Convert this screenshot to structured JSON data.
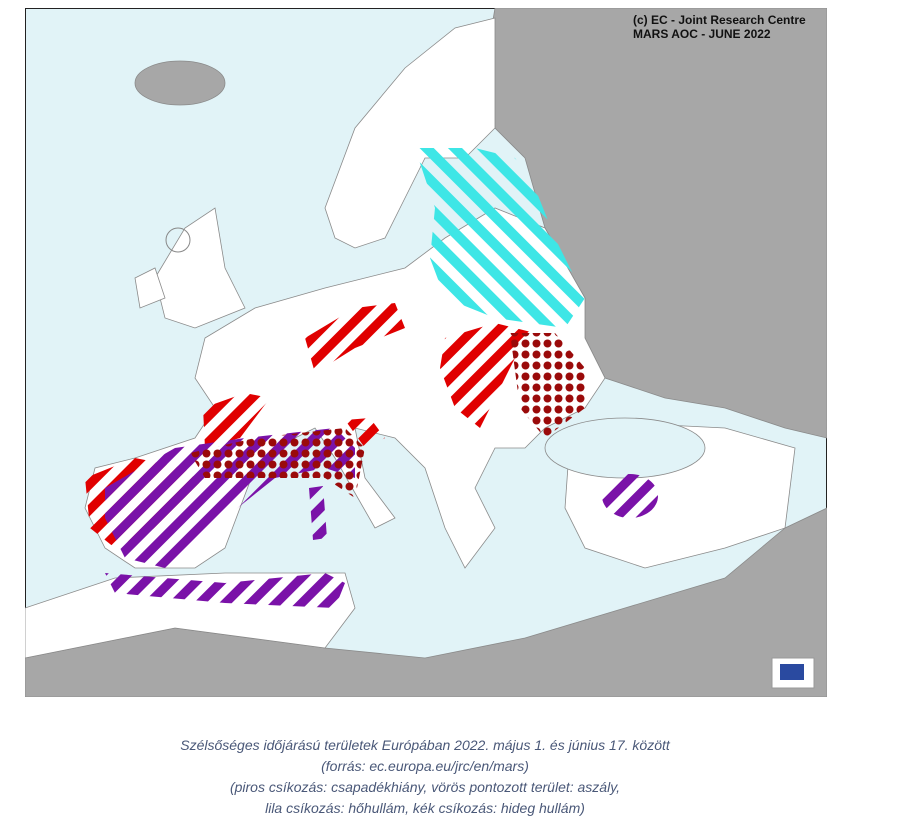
{
  "map": {
    "credit": [
      "(c) EC - Joint Research Centre",
      "MARS AOC - JUNE 2022"
    ]
  },
  "caption": [
    "Szélsőséges időjárású területek Európában 2022. május 1. és június 17. között",
    "(forrás: ec.europa.eu/jrc/en/mars)",
    "(piros csíkozás: csapadékhiány, vörös pontozott terület: aszály,",
    "lila csíkozás: hőhullám, kék csíkozás: hideg hullám)"
  ]
}
